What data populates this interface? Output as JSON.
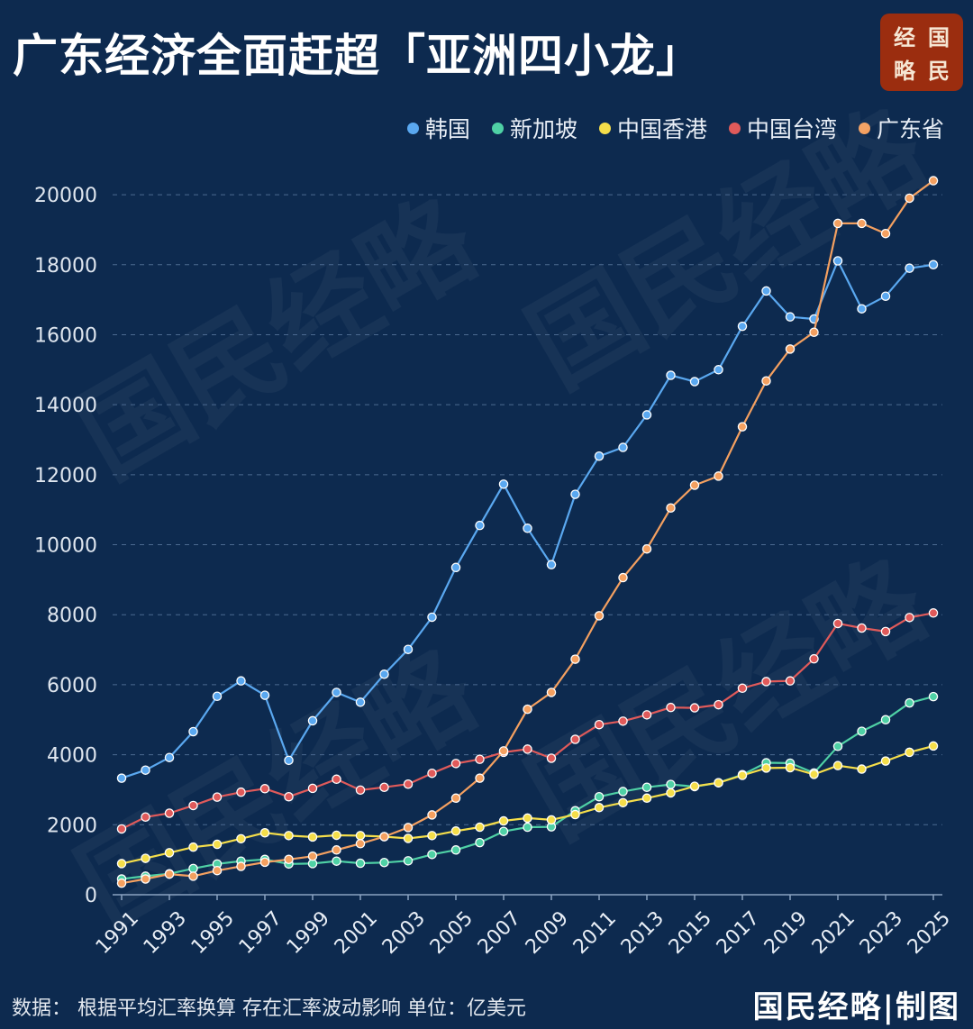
{
  "title": "广东经济全面赶超「亚洲四小龙」",
  "seal": [
    "经",
    "国",
    "略",
    "民"
  ],
  "footer": {
    "note": "数据： 根据平均汇率换算 存在汇率波动影响 单位：亿美元",
    "brand": "国民经略|制图"
  },
  "watermark": "国民经略",
  "chart_data": {
    "type": "line",
    "unit": "亿美元",
    "x": [
      1991,
      1992,
      1993,
      1994,
      1995,
      1996,
      1997,
      1998,
      1999,
      2000,
      2001,
      2002,
      2003,
      2004,
      2005,
      2006,
      2007,
      2008,
      2009,
      2010,
      2011,
      2012,
      2013,
      2014,
      2015,
      2016,
      2017,
      2018,
      2019,
      2020,
      2021,
      2022,
      2023,
      2024,
      2025
    ],
    "x_tick_labels": [
      "1991",
      "1993",
      "1995",
      "1997",
      "1999",
      "2001",
      "2003",
      "2005",
      "2007",
      "2009",
      "2011",
      "2013",
      "2015",
      "2017",
      "2019",
      "2021",
      "2023",
      "2025"
    ],
    "y_ticks": [
      0,
      2000,
      4000,
      6000,
      8000,
      10000,
      12000,
      14000,
      16000,
      18000,
      20000
    ],
    "y_tick_labels": [
      "0",
      "2000",
      "4000",
      "6000",
      "8000",
      "10000",
      "12000",
      "14000",
      "16000",
      "18000",
      "20000"
    ],
    "ylim": [
      0,
      20800
    ],
    "legend_position": "top-right",
    "grid": true,
    "series": [
      {
        "name": "韩国",
        "color": "#5aa8f0",
        "values": [
          3330,
          3560,
          3920,
          4660,
          5670,
          6110,
          5700,
          3840,
          4970,
          5780,
          5500,
          6300,
          7010,
          7930,
          9350,
          10550,
          11730,
          10470,
          9430,
          11440,
          12530,
          12780,
          13710,
          14840,
          14660,
          15000,
          16240,
          17250,
          16510,
          16450,
          18110,
          16740,
          17100,
          17900,
          18000
        ]
      },
      {
        "name": "新加坡",
        "color": "#4fd1a5",
        "values": [
          450,
          530,
          600,
          750,
          880,
          960,
          1010,
          880,
          890,
          960,
          900,
          920,
          970,
          1150,
          1280,
          1490,
          1810,
          1930,
          1940,
          2400,
          2800,
          2950,
          3070,
          3150,
          3090,
          3200,
          3430,
          3770,
          3760,
          3480,
          4240,
          4670,
          5000,
          5480,
          5660
        ]
      },
      {
        "name": "中国香港",
        "color": "#f5de4a",
        "values": [
          890,
          1040,
          1200,
          1360,
          1440,
          1600,
          1770,
          1690,
          1650,
          1700,
          1690,
          1660,
          1610,
          1690,
          1820,
          1930,
          2110,
          2190,
          2140,
          2290,
          2490,
          2630,
          2760,
          2910,
          3100,
          3200,
          3410,
          3620,
          3630,
          3440,
          3690,
          3590,
          3820,
          4070,
          4250
        ]
      },
      {
        "name": "中国台湾",
        "color": "#e05a5a",
        "values": [
          1880,
          2220,
          2330,
          2550,
          2790,
          2930,
          3030,
          2800,
          3040,
          3300,
          2990,
          3070,
          3160,
          3470,
          3750,
          3870,
          4070,
          4160,
          3900,
          4440,
          4860,
          4960,
          5140,
          5350,
          5340,
          5430,
          5900,
          6090,
          6110,
          6740,
          7750,
          7620,
          7520,
          7920,
          8050
        ]
      },
      {
        "name": "广东省",
        "color": "#f4a060",
        "values": [
          330,
          450,
          590,
          530,
          690,
          810,
          930,
          1010,
          1100,
          1280,
          1460,
          1660,
          1920,
          2280,
          2760,
          3330,
          4110,
          5300,
          5780,
          6730,
          7970,
          9060,
          9880,
          11050,
          11700,
          11960,
          13370,
          14680,
          15590,
          16070,
          19180,
          19180,
          18890,
          19900,
          20400
        ]
      }
    ]
  }
}
